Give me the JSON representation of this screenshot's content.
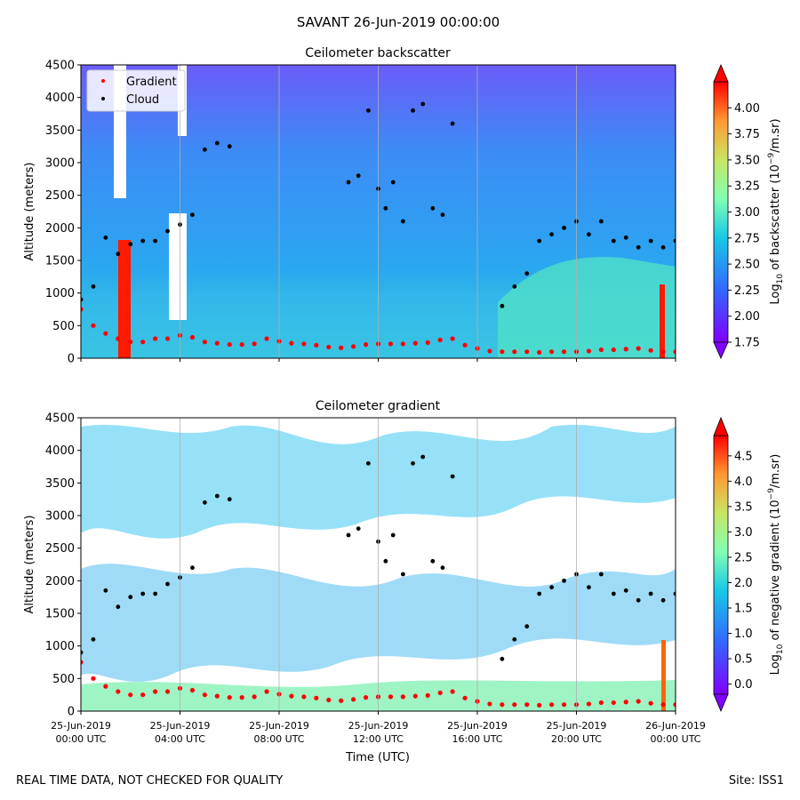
{
  "figure": {
    "suptitle": "SAVANT 26-Jun-2019 00:00:00",
    "footer_left": "REAL TIME DATA, NOT CHECKED FOR QUALITY",
    "footer_right": "Site: ISS1"
  },
  "chart_data": [
    {
      "type": "heatmap",
      "title": "Ceilometer backscatter",
      "ylabel": "Altitude (meters)",
      "ylim": [
        0,
        4500
      ],
      "yticks": [
        "0",
        "500",
        "1000",
        "1500",
        "2000",
        "2500",
        "3000",
        "3500",
        "4000",
        "4500"
      ],
      "xlim_hours": [
        0,
        24
      ],
      "vertical_gridlines": true,
      "colormap": "rainbow",
      "colorbar": {
        "label_prefix": "Log",
        "label_sub": "10",
        "label_mid": " of backscatter (10",
        "label_sup": "−9",
        "label_suffix": "/m.sr)",
        "range": [
          1.75,
          4.25
        ],
        "ticks": [
          "1.75",
          "2.00",
          "2.25",
          "2.50",
          "2.75",
          "3.00",
          "3.25",
          "3.50",
          "3.75",
          "4.00"
        ],
        "tick_values": [
          1.75,
          2.0,
          2.25,
          2.5,
          2.75,
          3.0,
          3.25,
          3.5,
          3.75,
          4.0
        ],
        "extend": "both"
      },
      "legend": {
        "placement": "top-left",
        "entries": [
          {
            "name": "Gradient",
            "color": "#ff0000"
          },
          {
            "name": "Cloud",
            "color": "#000000"
          }
        ]
      },
      "series": [
        {
          "name": "Gradient",
          "color": "#ff0000",
          "x_hours": [
            0,
            0.5,
            1,
            1.5,
            2,
            2.5,
            3,
            3.5,
            4,
            4.5,
            5,
            5.5,
            6,
            6.5,
            7,
            7.5,
            8,
            8.5,
            9,
            9.5,
            10,
            10.5,
            11,
            11.5,
            12,
            12.5,
            13,
            13.5,
            14,
            14.5,
            15,
            15.5,
            16,
            16.5,
            17,
            17.5,
            18,
            18.5,
            19,
            19.5,
            20,
            20.5,
            21,
            21.5,
            22,
            22.5,
            23,
            23.5,
            24
          ],
          "y": [
            750,
            500,
            380,
            300,
            250,
            250,
            300,
            300,
            350,
            320,
            250,
            230,
            210,
            210,
            220,
            300,
            260,
            230,
            220,
            200,
            170,
            160,
            180,
            210,
            220,
            220,
            220,
            230,
            240,
            280,
            300,
            200,
            150,
            110,
            100,
            100,
            100,
            90,
            100,
            100,
            100,
            110,
            130,
            130,
            140,
            150,
            120,
            100,
            100
          ]
        },
        {
          "name": "Cloud",
          "color": "#000000",
          "x_hours": [
            0,
            0.5,
            1,
            1.5,
            2,
            2.5,
            3,
            3.5,
            4,
            4.5,
            5,
            5.5,
            6,
            10.8,
            11.2,
            11.6,
            12,
            12.3,
            12.6,
            13,
            13.4,
            13.8,
            14.2,
            14.6,
            15,
            17,
            17.5,
            18,
            18.5,
            19,
            19.5,
            20,
            20.5,
            21,
            21.5,
            22,
            22.5,
            23,
            23.5,
            24
          ],
          "y": [
            900,
            1100,
            1850,
            1600,
            1750,
            1800,
            1800,
            1950,
            2050,
            2200,
            3200,
            3300,
            3250,
            2700,
            2800,
            3800,
            2600,
            2300,
            2700,
            2100,
            3800,
            3900,
            2300,
            2200,
            3600,
            800,
            1100,
            1300,
            1800,
            1900,
            2000,
            2100,
            1900,
            2100,
            1800,
            1850,
            1700,
            1800,
            1700,
            1800
          ]
        }
      ]
    },
    {
      "type": "heatmap",
      "title": "Ceilometer gradient",
      "xlabel": "Time (UTC)",
      "ylabel": "Altitude (meters)",
      "ylim": [
        0,
        4500
      ],
      "yticks": [
        "0",
        "500",
        "1000",
        "1500",
        "2000",
        "2500",
        "3000",
        "3500",
        "4000",
        "4500"
      ],
      "xlim_hours": [
        0,
        24
      ],
      "xticks": [
        {
          "line1": "25-Jun-2019",
          "line2": "00:00 UTC"
        },
        {
          "line1": "25-Jun-2019",
          "line2": "04:00 UTC"
        },
        {
          "line1": "25-Jun-2019",
          "line2": "08:00 UTC"
        },
        {
          "line1": "25-Jun-2019",
          "line2": "12:00 UTC"
        },
        {
          "line1": "25-Jun-2019",
          "line2": "16:00 UTC"
        },
        {
          "line1": "25-Jun-2019",
          "line2": "20:00 UTC"
        },
        {
          "line1": "26-Jun-2019",
          "line2": "00:00 UTC"
        }
      ],
      "xtick_hours": [
        0,
        4,
        8,
        12,
        16,
        20,
        24
      ],
      "vertical_gridlines": true,
      "colormap": "rainbow",
      "colorbar": {
        "label_prefix": "Log",
        "label_sub": "10",
        "label_mid": " of negative gradient (10",
        "label_sup": "−9",
        "label_suffix": "/m.sr)",
        "range": [
          -0.2,
          4.9
        ],
        "ticks": [
          "0.0",
          "0.5",
          "1.0",
          "1.5",
          "2.0",
          "2.5",
          "3.0",
          "3.5",
          "4.0",
          "4.5"
        ],
        "tick_values": [
          0.0,
          0.5,
          1.0,
          1.5,
          2.0,
          2.5,
          3.0,
          3.5,
          4.0,
          4.5
        ],
        "extend": "both"
      },
      "series": [
        {
          "name": "Gradient",
          "color": "#ff0000",
          "x_hours": [
            0,
            0.5,
            1,
            1.5,
            2,
            2.5,
            3,
            3.5,
            4,
            4.5,
            5,
            5.5,
            6,
            6.5,
            7,
            7.5,
            8,
            8.5,
            9,
            9.5,
            10,
            10.5,
            11,
            11.5,
            12,
            12.5,
            13,
            13.5,
            14,
            14.5,
            15,
            15.5,
            16,
            16.5,
            17,
            17.5,
            18,
            18.5,
            19,
            19.5,
            20,
            20.5,
            21,
            21.5,
            22,
            22.5,
            23,
            23.5,
            24
          ],
          "y": [
            750,
            500,
            380,
            300,
            250,
            250,
            300,
            300,
            350,
            320,
            250,
            230,
            210,
            210,
            220,
            300,
            260,
            230,
            220,
            200,
            170,
            160,
            180,
            210,
            220,
            220,
            220,
            230,
            240,
            280,
            300,
            200,
            150,
            110,
            100,
            100,
            100,
            90,
            100,
            100,
            100,
            110,
            130,
            130,
            140,
            150,
            120,
            100,
            100
          ]
        },
        {
          "name": "Cloud",
          "color": "#000000",
          "x_hours": [
            0,
            0.5,
            1,
            1.5,
            2,
            2.5,
            3,
            3.5,
            4,
            4.5,
            5,
            5.5,
            6,
            10.8,
            11.2,
            11.6,
            12,
            12.3,
            12.6,
            13,
            13.4,
            13.8,
            14.2,
            14.6,
            15,
            17,
            17.5,
            18,
            18.5,
            19,
            19.5,
            20,
            20.5,
            21,
            21.5,
            22,
            22.5,
            23,
            23.5,
            24
          ],
          "y": [
            900,
            1100,
            1850,
            1600,
            1750,
            1800,
            1800,
            1950,
            2050,
            2200,
            3200,
            3300,
            3250,
            2700,
            2800,
            3800,
            2600,
            2300,
            2700,
            2100,
            3800,
            3900,
            2300,
            2200,
            3600,
            800,
            1100,
            1300,
            1800,
            1900,
            2000,
            2100,
            1900,
            2100,
            1800,
            1850,
            1700,
            1800,
            1700,
            1800
          ]
        }
      ]
    }
  ]
}
